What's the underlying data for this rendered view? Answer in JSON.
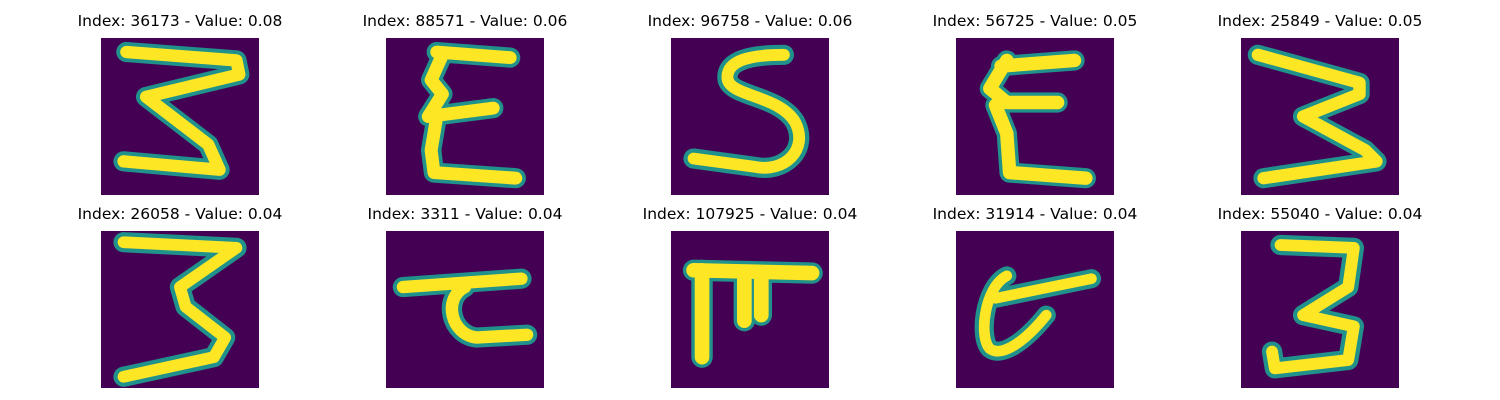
{
  "background": "#ffffff",
  "colors": {
    "image_background": "#440154",
    "stroke_edge": "#21918c",
    "stroke_mid": "#5ec962",
    "stroke_core": "#fde725"
  },
  "panels": [
    {
      "index": "36173",
      "value": "0.08",
      "title": "Index: 36173 - Value: 0.08",
      "glyph": "3 rotated (like Σ-shaped 3)"
    },
    {
      "index": "88571",
      "value": "0.06",
      "title": "Index: 88571 - Value: 0.06",
      "glyph": "Ɛ / E-like"
    },
    {
      "index": "96758",
      "value": "0.06",
      "title": "Index: 96758 - Value: 0.06",
      "glyph": "S-like"
    },
    {
      "index": "56725",
      "value": "0.05",
      "title": "Index: 56725 - Value: 0.05",
      "glyph": "E-like"
    },
    {
      "index": "25849",
      "value": "0.05",
      "title": "Index: 25849 - Value: 0.05",
      "glyph": "3 / Σ-like"
    },
    {
      "index": "26058",
      "value": "0.04",
      "title": "Index: 26058 - Value: 0.04",
      "glyph": "3-like"
    },
    {
      "index": "3311",
      "value": "0.04",
      "title": "Index: 3311 - Value: 0.04",
      "glyph": "τ-like"
    },
    {
      "index": "107925",
      "value": "0.04",
      "title": "Index: 107925 - Value: 0.04",
      "glyph": "π-like"
    },
    {
      "index": "31914",
      "value": "0.04",
      "title": "Index: 31914 - Value: 0.04",
      "glyph": "σ-like"
    },
    {
      "index": "55040",
      "value": "0.04",
      "title": "Index: 55040 - Value: 0.04",
      "glyph": "3-like"
    }
  ]
}
